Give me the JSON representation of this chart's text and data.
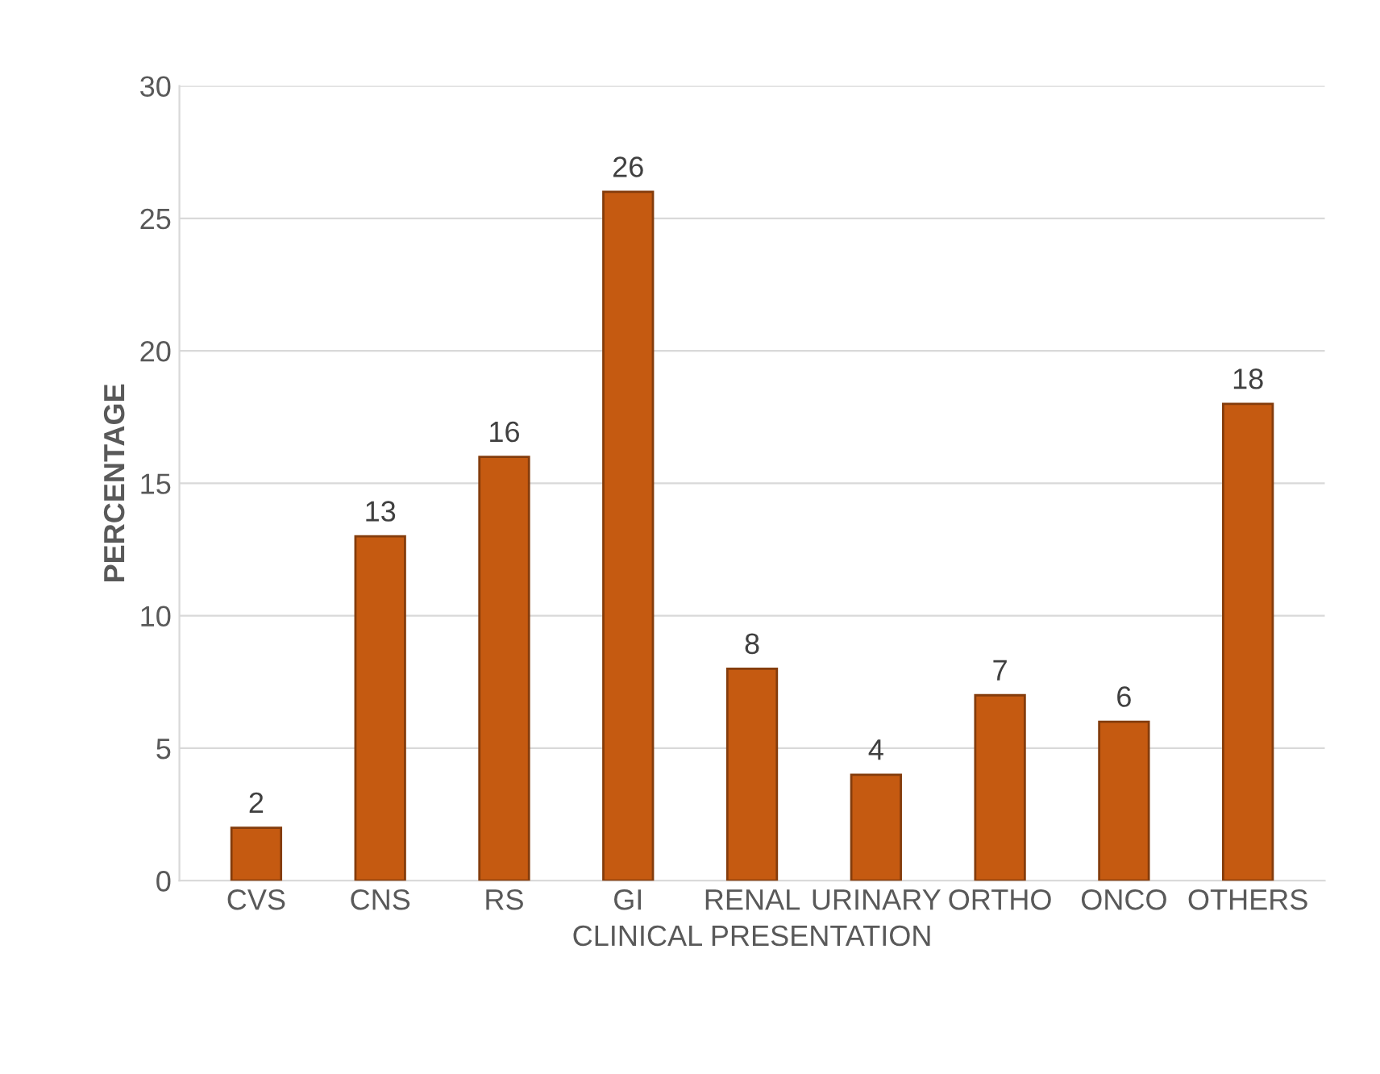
{
  "chart_data": {
    "type": "bar",
    "xlabel": "CLINICAL PRESENTATION",
    "ylabel": "PERCENTAGE",
    "categories": [
      "CVS",
      "CNS",
      "RS",
      "GI",
      "RENAL",
      "URINARY",
      "ORTHO",
      "ONCO",
      "OTHERS"
    ],
    "values": [
      2,
      13,
      16,
      26,
      8,
      4,
      7,
      6,
      18
    ],
    "color": "#c55a11",
    "ylim": [
      0,
      30
    ],
    "yticks": [
      0,
      5,
      10,
      15,
      20,
      25,
      30
    ],
    "grid": "y",
    "data_labels": true
  }
}
